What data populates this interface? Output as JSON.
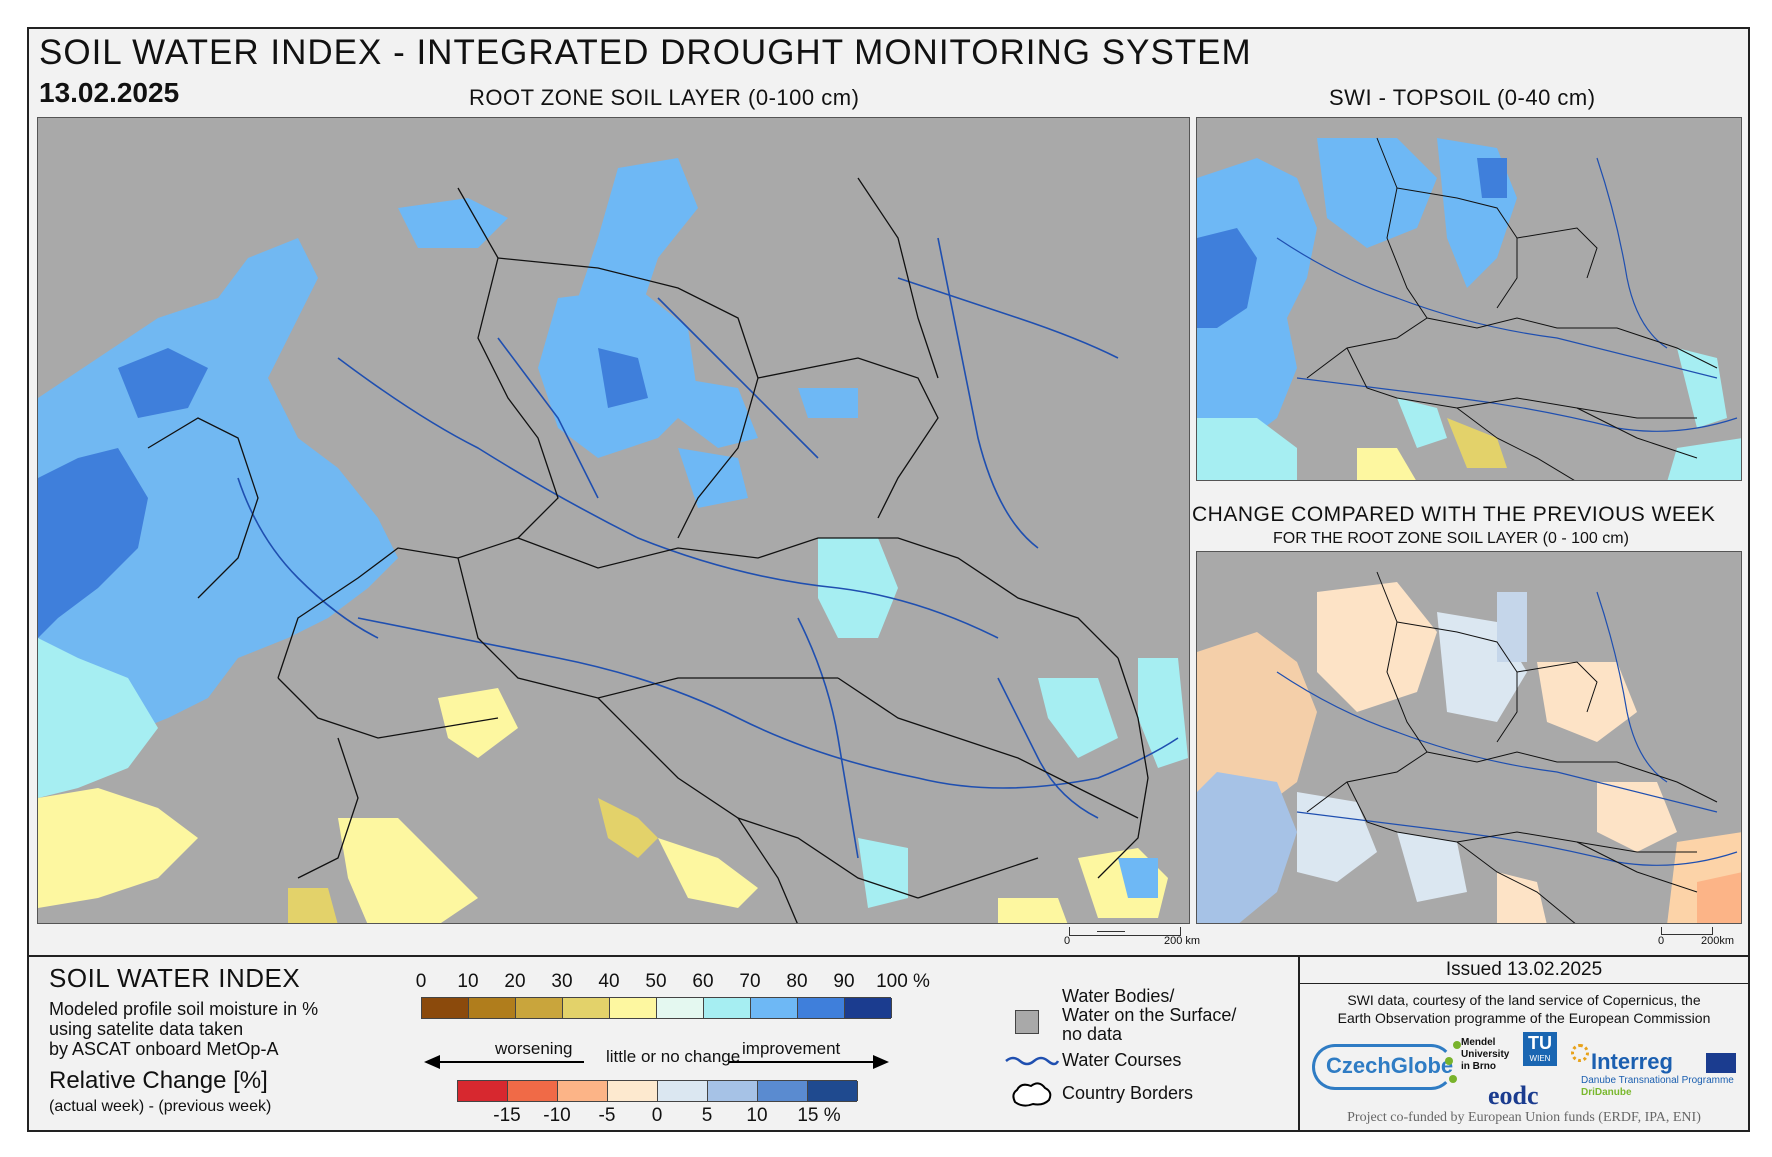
{
  "header": {
    "title": "SOIL WATER INDEX - INTEGRATED DROUGHT MONITORING SYSTEM",
    "date": "13.02.2025"
  },
  "maps": {
    "main_title": "ROOT ZONE SOIL LAYER (0-100 cm)",
    "topsoil_title": "SWI - TOPSOIL (0-40 cm)",
    "change_title": "CHANGE COMPARED WITH THE PREVIOUS WEEK",
    "change_subtitle": "FOR THE ROOT ZONE SOIL LAYER (0 - 100 cm)",
    "scalebar_main_start": "0",
    "scalebar_main_end": "200 km",
    "scalebar_small_start": "0",
    "scalebar_small_end": "200km"
  },
  "legend": {
    "title": "SOIL WATER INDEX",
    "description_1": "Modeled profile soil moisture in %",
    "description_2": "using satelite data taken",
    "description_3": "by ASCAT onboard MetOp-A",
    "relative_title": "Relative Change [%]",
    "relative_desc": "(actual week) - (previous week)",
    "swi_ticks": [
      "0",
      "10",
      "20",
      "30",
      "40",
      "50",
      "60",
      "70",
      "80",
      "90",
      "100 %"
    ],
    "swi_colors": [
      "#8b4a0c",
      "#b07d1c",
      "#c9a53c",
      "#e3d26a",
      "#fdf7a0",
      "#e4f8f0",
      "#a6eef2",
      "#6eb8f5",
      "#3f7fdb",
      "#1b3c8f"
    ],
    "change_ticks": [
      "-15",
      "-10",
      "-5",
      "0",
      "5",
      "10",
      "15 %"
    ],
    "change_colors": [
      "#d7282f",
      "#f06a47",
      "#fcb487",
      "#fde9cf",
      "#dbe7f1",
      "#a6c2e6",
      "#5a8bd0",
      "#1f4a8f"
    ],
    "worsening": "worsening",
    "little_change": "little or no change",
    "improvement": "improvement",
    "water_bodies_1": "Water Bodies/",
    "water_bodies_2": "Water on the Surface/",
    "water_bodies_3": "no data",
    "water_courses": "Water Courses",
    "country_borders": "Country Borders"
  },
  "credits": {
    "issued": "Issued 13.02.2025",
    "line1": "SWI data, courtesy of the land service of Copernicus, the",
    "line2": "Earth Observation programme of the European Commission",
    "funding": "Project co-funded by European Union funds (ERDF, IPA, ENI)",
    "logo_czechglobe": "CzechGlobe",
    "logo_mendel_1": "Mendel",
    "logo_mendel_2": "University",
    "logo_mendel_3": "in Brno",
    "logo_tu": "TU",
    "logo_tu_sub": "WIEN",
    "logo_eodc": "eodc",
    "logo_interreg": "Interreg",
    "logo_interreg_sub1": "Danube Transnational Programme",
    "logo_interreg_sub2": "DriDanube"
  }
}
